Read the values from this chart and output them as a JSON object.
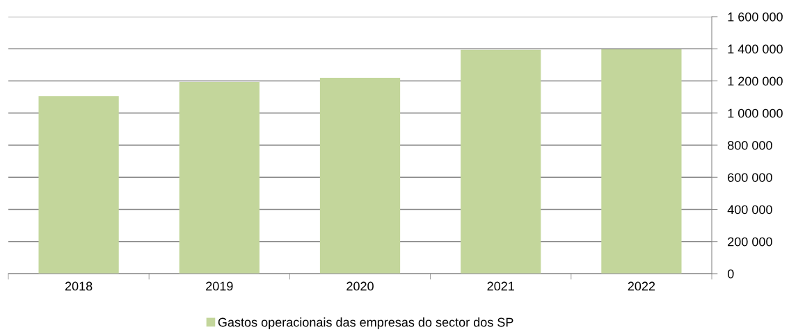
{
  "chart_data": {
    "type": "bar",
    "categories": [
      "2018",
      "2019",
      "2020",
      "2021",
      "2022"
    ],
    "series": [
      {
        "name": "Gastos operacionais das empresas do sector dos SP",
        "color": "#c3d69b",
        "values": [
          1106000,
          1193000,
          1219000,
          1393000,
          1397000
        ]
      }
    ],
    "ylim": [
      0,
      1600000
    ],
    "yticks": [
      0,
      {
        "value": 200000,
        "label": "200 000"
      },
      {
        "value": 400000,
        "label": "400 000"
      },
      {
        "value": 600000,
        "label": "600 000"
      },
      {
        "value": 800000,
        "label": "800 000"
      },
      {
        "value": 1000000,
        "label": "1 000 000"
      },
      {
        "value": 1200000,
        "label": "1 200 000"
      },
      {
        "value": 1400000,
        "label": "1 400 000"
      },
      {
        "value": 1600000,
        "label": "1 600 000"
      }
    ],
    "grid": "y",
    "legend": "bottom"
  }
}
